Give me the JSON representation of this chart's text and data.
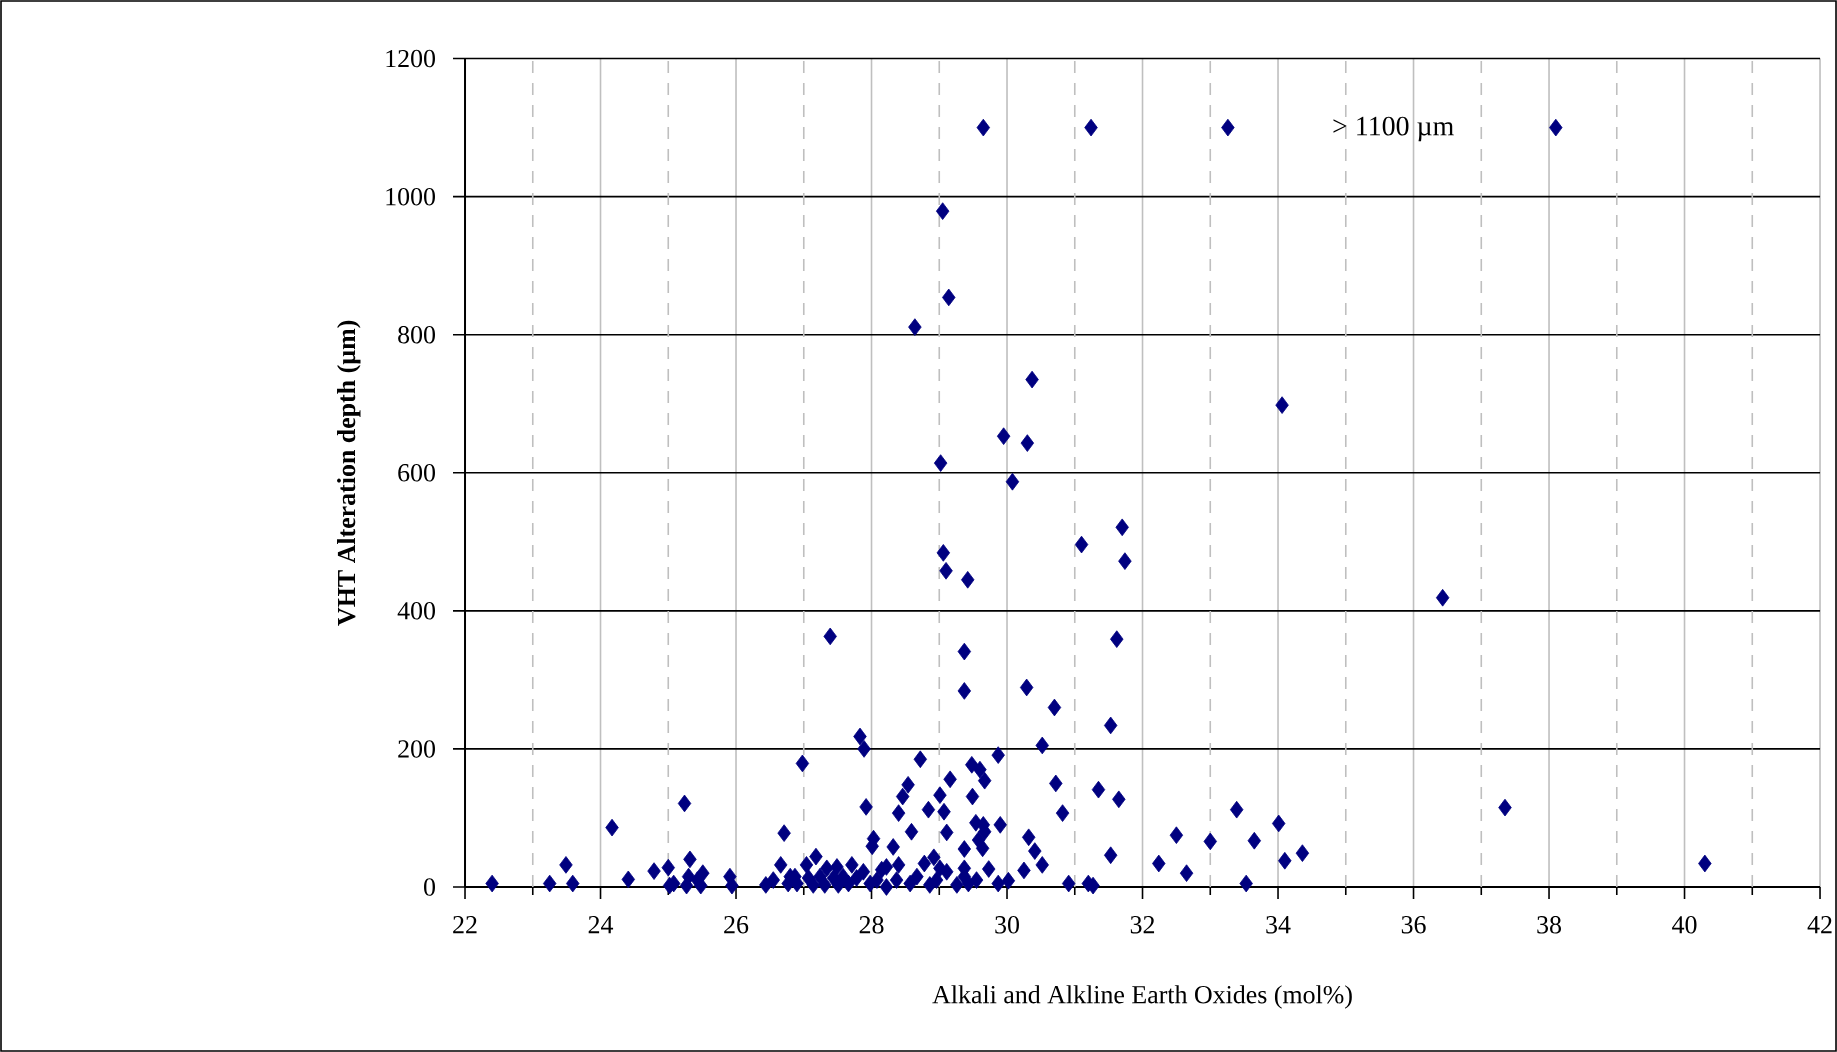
{
  "chart_data": {
    "type": "scatter",
    "xlabel": "Alkali and Alkline Earth Oxides (mol%)",
    "ylabel": "VHT Alteration depth (µm)",
    "annotations": [
      "> 1100 µm"
    ],
    "xlim": [
      22,
      42
    ],
    "ylim": [
      0,
      1200
    ],
    "xticks": [
      22,
      {
        "value": 23,
        "label": null
      },
      24,
      {
        "value": 25,
        "label": null
      },
      26,
      {
        "value": 27,
        "label": null
      },
      28,
      {
        "value": 29,
        "label": null
      },
      30,
      {
        "value": 31,
        "label": null
      },
      32,
      {
        "value": 33,
        "label": null
      },
      34,
      {
        "value": 35,
        "label": null
      },
      36,
      {
        "value": 37,
        "label": null
      },
      38,
      {
        "value": 39,
        "label": null
      },
      40,
      {
        "value": 41,
        "label": null
      },
      42
    ],
    "yticks": [
      0,
      200,
      400,
      600,
      800,
      1000,
      1200
    ],
    "grid": true,
    "marker": "diamond",
    "color": "#000080",
    "x": [
      22.4,
      23.25,
      23.59,
      23.49,
      24.17,
      24.41,
      24.79,
      25.0,
      25.02,
      25.08,
      25.24,
      25.32,
      25.3,
      25.27,
      25.48,
      25.51,
      25.43,
      25.91,
      25.94,
      26.44,
      26.55,
      26.66,
      26.71,
      26.77,
      26.8,
      26.87,
      26.9,
      26.98,
      27.04,
      27.07,
      27.14,
      27.18,
      27.24,
      27.31,
      27.34,
      27.39,
      27.44,
      27.49,
      27.51,
      27.58,
      27.66,
      27.71,
      27.78,
      27.83,
      27.89,
      27.88,
      27.92,
      27.98,
      28.01,
      28.03,
      28.08,
      28.15,
      28.22,
      28.22,
      28.32,
      28.37,
      28.4,
      28.4,
      28.46,
      28.54,
      28.59,
      28.57,
      28.64,
      28.67,
      28.72,
      28.78,
      28.84,
      28.86,
      28.92,
      28.96,
      29.01,
      29.01,
      29.02,
      29.05,
      29.06,
      29.1,
      29.07,
      29.11,
      29.11,
      29.14,
      29.16,
      29.26,
      29.37,
      29.37,
      29.42,
      29.37,
      29.37,
      29.37,
      29.43,
      29.48,
      29.49,
      29.54,
      29.55,
      29.58,
      29.6,
      29.64,
      29.65,
      29.67,
      29.67,
      29.65,
      29.73,
      29.87,
      29.87,
      29.9,
      29.95,
      30.02,
      30.08,
      30.25,
      30.29,
      30.3,
      30.32,
      30.37,
      30.41,
      30.52,
      30.52,
      30.7,
      30.72,
      30.82,
      30.91,
      31.1,
      31.2,
      31.24,
      31.27,
      31.35,
      31.53,
      31.53,
      31.62,
      31.65,
      31.7,
      31.74,
      32.24,
      32.5,
      32.65,
      33.0,
      33.26,
      33.39,
      33.53,
      33.65,
      34.01,
      34.06,
      34.1,
      34.36,
      36.43,
      37.35,
      38.1,
      40.3
    ],
    "values": [
      5,
      5,
      5,
      32,
      86,
      11,
      23,
      28,
      2,
      5,
      121,
      40,
      15,
      2,
      2,
      20,
      10,
      15,
      2,
      3,
      10,
      32,
      78,
      5,
      15,
      15,
      5,
      179,
      32,
      13,
      3,
      44,
      15,
      3,
      27,
      363,
      13,
      29,
      3,
      15,
      5,
      32,
      13,
      218,
      200,
      22,
      116,
      5,
      59,
      70,
      10,
      25,
      29,
      0,
      58,
      10,
      32,
      107,
      131,
      148,
      80,
      5,
      811,
      15,
      185,
      34,
      112,
      3,
      43,
      10,
      133,
      27,
      614,
      979,
      484,
      458,
      109,
      79,
      22,
      854,
      156,
      3,
      341,
      284,
      445,
      55,
      27,
      15,
      5,
      177,
      131,
      93,
      10,
      68,
      170,
      56,
      90,
      80,
      154,
      1100,
      26,
      191,
      5,
      90,
      653,
      9,
      587,
      24,
      289,
      643,
      72,
      735,
      52,
      205,
      32,
      260,
      150,
      107,
      5,
      496,
      5,
      1100,
      2,
      141,
      234,
      46,
      359,
      127,
      521,
      472,
      34,
      75,
      20,
      66,
      1100,
      112,
      5,
      67,
      92,
      698,
      38,
      49,
      419,
      115,
      1100,
      34
    ]
  }
}
